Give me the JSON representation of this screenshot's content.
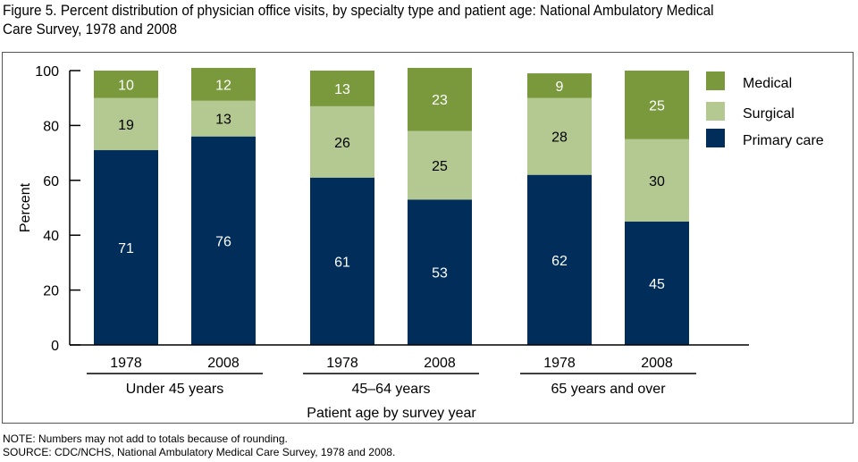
{
  "title": "Figure 5. Percent distribution of physician office visits, by specialty type and patient age: National Ambulatory Medical Care Survey, 1978 and 2008",
  "title_lines": [
    "Figure 5. Percent distribution of physician office visits, by specialty type and patient age: National Ambulatory Medical",
    "Care Survey, 1978 and 2008"
  ],
  "notes": {
    "note": "NOTE: Numbers may not add to totals because of rounding.",
    "source": "SOURCE: CDC/NCHS, National Ambulatory Medical Care Survey, 1978 and 2008."
  },
  "colors": {
    "Primary care": "#002d5a",
    "Surgical": "#b4c891",
    "Medical": "#7a993c"
  },
  "chart_data": {
    "type": "bar",
    "stacked": true,
    "title": "Percent distribution of physician office visits, by specialty type and patient age: National Ambulatory Medical Care Survey, 1978 and 2008",
    "xlabel": "Patient age by survey year",
    "ylabel": "Percent",
    "ylim": [
      0,
      100
    ],
    "yticks": [
      0,
      20,
      40,
      60,
      80,
      100
    ],
    "grid": false,
    "legend_position": "top-right",
    "groups": [
      {
        "label": "Under 45 years",
        "categories": [
          "1978",
          "2008"
        ]
      },
      {
        "label": "45–64 years",
        "categories": [
          "1978",
          "2008"
        ]
      },
      {
        "label": "65 years and over",
        "categories": [
          "1978",
          "2008"
        ]
      }
    ],
    "categories": [
      "Under 45 years 1978",
      "Under 45 years 2008",
      "45–64 years 1978",
      "45–64 years 2008",
      "65 years and over 1978",
      "65 years and over 2008"
    ],
    "category_tick_labels": [
      "1978",
      "2008",
      "1978",
      "2008",
      "1978",
      "2008"
    ],
    "series": [
      {
        "name": "Primary care",
        "values": [
          71,
          76,
          61,
          53,
          62,
          45
        ]
      },
      {
        "name": "Surgical",
        "values": [
          19,
          13,
          26,
          25,
          28,
          30
        ]
      },
      {
        "name": "Medical",
        "values": [
          10,
          12,
          13,
          23,
          9,
          25
        ]
      }
    ],
    "legend": [
      "Medical",
      "Surgical",
      "Primary care"
    ]
  }
}
